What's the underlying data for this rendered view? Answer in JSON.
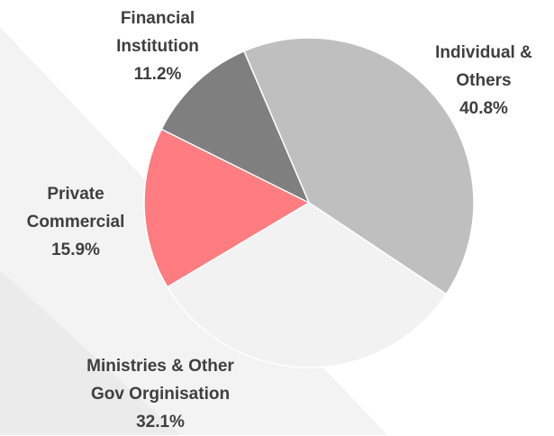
{
  "chart_data": {
    "type": "pie",
    "title": "",
    "start_angle_deg": -23.2,
    "direction": "clockwise",
    "slices": [
      {
        "label_lines": [
          "Individual &",
          "Others"
        ],
        "value": 40.8,
        "value_label": "40.8%",
        "color": "#bfbfbf"
      },
      {
        "label_lines": [
          "Ministries & Other",
          "Gov Orginisation"
        ],
        "value": 32.1,
        "value_label": "32.1%",
        "color": "#f2f2f2"
      },
      {
        "label_lines": [
          "Private",
          "Commercial"
        ],
        "value": 15.9,
        "value_label": "15.9%",
        "color": "#ff7c80"
      },
      {
        "label_lines": [
          "Financial",
          "Institution"
        ],
        "value": 11.2,
        "value_label": "11.2%",
        "color": "#7f7f7f"
      }
    ],
    "slice_edge_color": "#ffffff",
    "label_color": "#3f3f3f",
    "legend": "none"
  }
}
